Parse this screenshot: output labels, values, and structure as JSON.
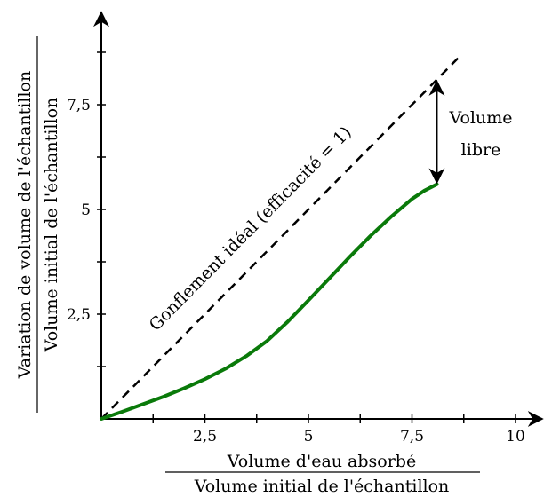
{
  "chart_data": {
    "type": "line",
    "x_axis": {
      "range": [
        0,
        10
      ],
      "ticks": [
        2.5,
        5,
        7.5,
        10
      ],
      "tick_labels": [
        "2,5",
        "5",
        "7,5",
        "10"
      ],
      "label_numerator": "Volume d'eau absorbé",
      "label_denominator": "Volume initial de l'échantillon"
    },
    "y_axis": {
      "range": [
        0,
        10
      ],
      "ticks": [
        2.5,
        5,
        7.5
      ],
      "tick_labels": [
        "2,5",
        "5",
        "7,5"
      ],
      "label_numerator": "Variation de volume de l'échantillon",
      "label_denominator": "Volume initial de l'échantillon"
    },
    "grid": false,
    "series": [
      {
        "style": "dashed",
        "color": "#000000",
        "x": [
          0,
          8.7
        ],
        "y": [
          0,
          8.7
        ]
      },
      {
        "style": "solid",
        "color": "#0a7a0a",
        "x": [
          0,
          0.5,
          1,
          1.5,
          2,
          2.5,
          3,
          3.5,
          4,
          4.5,
          5,
          5.5,
          6,
          6.5,
          7,
          7.5,
          7.8,
          8.1
        ],
        "y": [
          0,
          0.17,
          0.35,
          0.53,
          0.73,
          0.95,
          1.2,
          1.5,
          1.86,
          2.32,
          2.83,
          3.35,
          3.87,
          4.37,
          4.83,
          5.25,
          5.45,
          5.6
        ]
      }
    ],
    "annotations": {
      "ideal_line_label": "Gonflement idéal (efficacité = 1)",
      "free_volume_label": [
        "Volume",
        "libre"
      ],
      "free_volume_arrow": {
        "x": 8.1,
        "y_from": 8.1,
        "y_to": 5.6
      }
    }
  }
}
